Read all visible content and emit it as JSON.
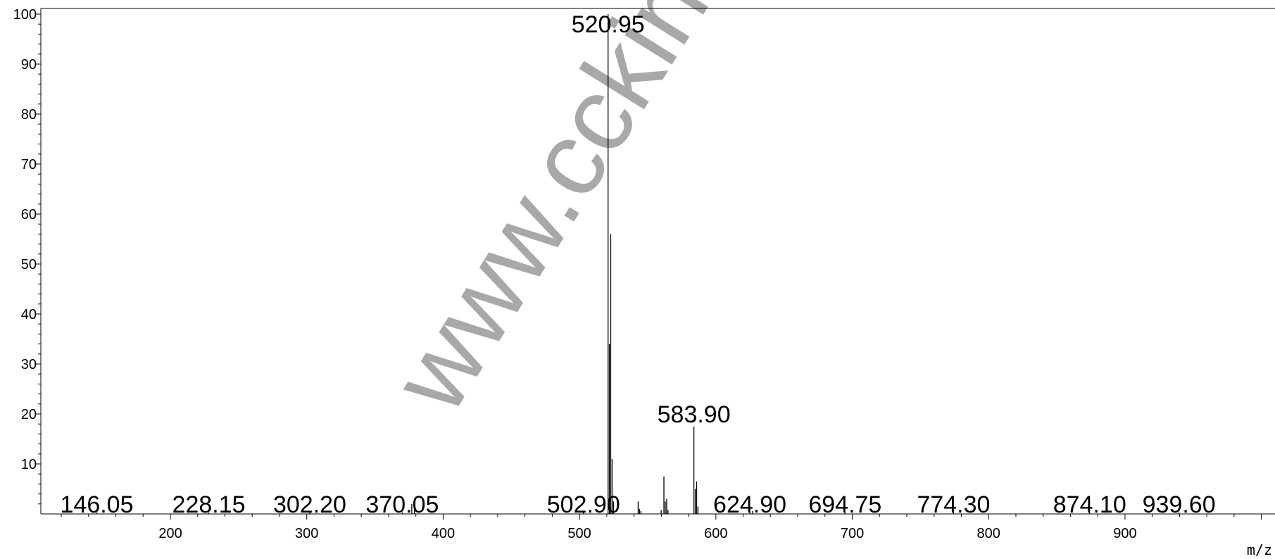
{
  "chart_data": {
    "type": "bar",
    "title": "",
    "xlabel": "m/z",
    "ylabel": "",
    "xlim": [
      105,
      1010
    ],
    "ylim": [
      0,
      100
    ],
    "grid": false,
    "x_ticks": [
      200,
      300,
      400,
      500,
      600,
      700,
      800,
      900
    ],
    "y_ticks": [
      10,
      20,
      30,
      40,
      50,
      60,
      70,
      80,
      90,
      100
    ],
    "series": [
      {
        "peaks": [
          {
            "x": 146.05,
            "y": 0.3
          },
          {
            "x": 228.15,
            "y": 0.3
          },
          {
            "x": 302.2,
            "y": 0.3
          },
          {
            "x": 370.05,
            "y": 0.3
          },
          {
            "x": 377.0,
            "y": 2.0
          },
          {
            "x": 379.0,
            "y": 0.8
          },
          {
            "x": 502.9,
            "y": 0.4
          },
          {
            "x": 520.95,
            "y": 100
          },
          {
            "x": 521.9,
            "y": 34
          },
          {
            "x": 522.9,
            "y": 56
          },
          {
            "x": 523.9,
            "y": 11
          },
          {
            "x": 524.9,
            "y": 2.5
          },
          {
            "x": 543.0,
            "y": 2.5
          },
          {
            "x": 544.0,
            "y": 1.0
          },
          {
            "x": 545.0,
            "y": 0.6
          },
          {
            "x": 559.9,
            "y": 0.8
          },
          {
            "x": 561.9,
            "y": 7.5
          },
          {
            "x": 562.9,
            "y": 2.5
          },
          {
            "x": 563.9,
            "y": 3.0
          },
          {
            "x": 564.9,
            "y": 0.8
          },
          {
            "x": 583.9,
            "y": 17.5
          },
          {
            "x": 584.9,
            "y": 5.0
          },
          {
            "x": 585.9,
            "y": 6.5
          },
          {
            "x": 586.9,
            "y": 1.5
          },
          {
            "x": 624.9,
            "y": 1.2
          },
          {
            "x": 626.9,
            "y": 0.6
          },
          {
            "x": 694.75,
            "y": 0.3
          },
          {
            "x": 774.3,
            "y": 0.3
          },
          {
            "x": 874.1,
            "y": 0.3
          },
          {
            "x": 939.6,
            "y": 0.3
          }
        ]
      }
    ],
    "annotations": [
      {
        "text": "520.95",
        "x": 520.95,
        "y": 100
      },
      {
        "text": "583.90",
        "x": 583.9,
        "y": 17.5
      },
      {
        "text": "624.90",
        "x": 624.9,
        "y": 1.2
      },
      {
        "text": "146.05",
        "x": 146.05,
        "y": 0
      },
      {
        "text": "228.15",
        "x": 228.15,
        "y": 0
      },
      {
        "text": "302.20",
        "x": 302.2,
        "y": 0
      },
      {
        "text": "370.05",
        "x": 370.05,
        "y": 0
      },
      {
        "text": "502.90",
        "x": 502.9,
        "y": 0
      },
      {
        "text": "694.75",
        "x": 694.75,
        "y": 0
      },
      {
        "text": "774.30",
        "x": 774.3,
        "y": 0
      },
      {
        "text": "874.10",
        "x": 874.1,
        "y": 0
      },
      {
        "text": "939.60",
        "x": 939.6,
        "y": 0
      }
    ],
    "watermark": "www.cckinase.c"
  }
}
